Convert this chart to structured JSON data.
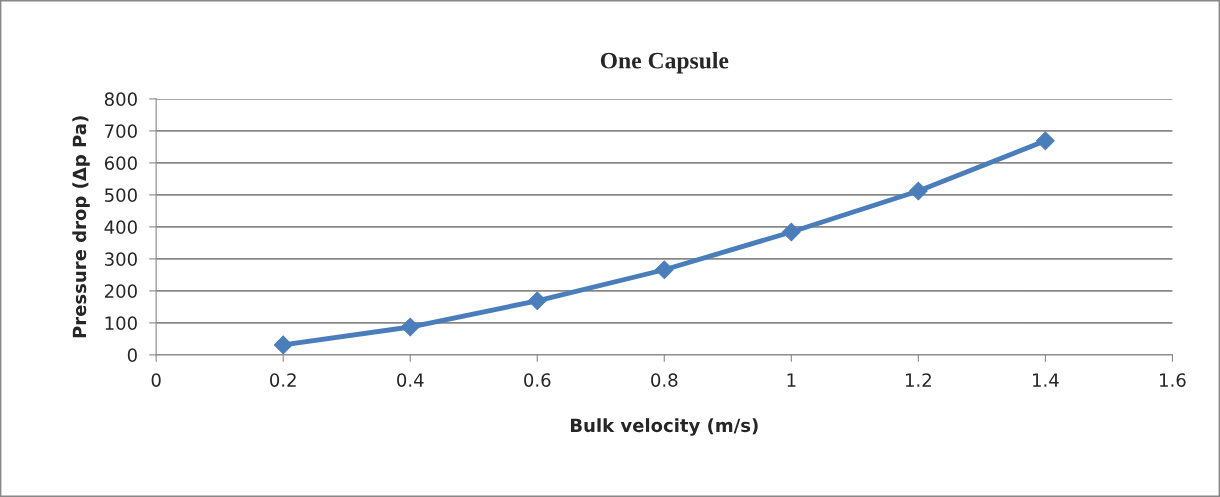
{
  "chart_data": {
    "type": "line",
    "title": "One Capsule",
    "xlabel": "Bulk velocity (m/s)",
    "ylabel": "Pressure drop (Δp Pa)",
    "x": [
      0.2,
      0.4,
      0.6,
      0.8,
      1.0,
      1.2,
      1.4
    ],
    "series": [
      {
        "color": "#4a7ebb",
        "values": [
          31,
          87,
          169,
          266,
          384,
          512,
          669
        ]
      }
    ],
    "xlim": [
      0,
      1.6
    ],
    "xticks": [
      0,
      0.2,
      0.4,
      0.6,
      0.8,
      1,
      1.2,
      1.4,
      1.6
    ],
    "ylim": [
      0,
      800
    ],
    "yticks": [
      0,
      100,
      200,
      300,
      400,
      500,
      600,
      700,
      800
    ],
    "grid": "y",
    "marker": "diamond",
    "line_style": "solid"
  }
}
